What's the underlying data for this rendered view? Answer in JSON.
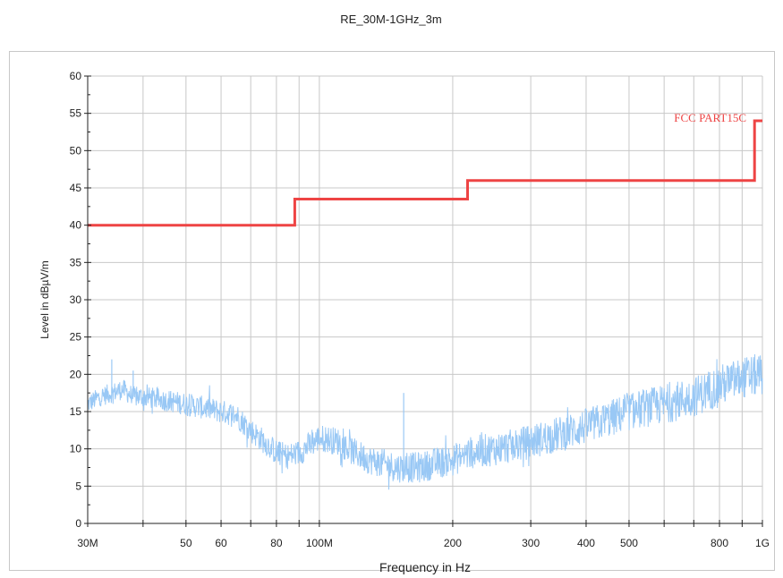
{
  "chart_data": {
    "type": "line",
    "title": "RE_30M-1GHz_3m",
    "xlabel": "Frequency in Hz",
    "ylabel": "Level in dBµV/m",
    "x_scale": "log",
    "xlim": [
      30000000,
      1000000000
    ],
    "ylim": [
      0,
      60
    ],
    "grid": true,
    "x_ticks": [
      {
        "value": 30000000,
        "label": "30M"
      },
      {
        "value": 50000000,
        "label": "50"
      },
      {
        "value": 60000000,
        "label": "60"
      },
      {
        "value": 80000000,
        "label": "80"
      },
      {
        "value": 100000000,
        "label": "100M"
      },
      {
        "value": 200000000,
        "label": "200"
      },
      {
        "value": 300000000,
        "label": "300"
      },
      {
        "value": 400000000,
        "label": "400"
      },
      {
        "value": 500000000,
        "label": "500"
      },
      {
        "value": 800000000,
        "label": "800"
      },
      {
        "value": 1000000000,
        "label": "1G"
      }
    ],
    "y_ticks": [
      0,
      5,
      10,
      15,
      20,
      25,
      30,
      35,
      40,
      45,
      50,
      55,
      60
    ],
    "y_tick_labels": [
      "0",
      "5",
      "10",
      "15",
      "20",
      "25",
      "30",
      "35",
      "40",
      "45",
      "50",
      "55",
      "60"
    ],
    "series": [
      {
        "name": "FCC PART15C",
        "color": "#ee4444",
        "x": [
          30000000,
          88000000,
          88000000,
          216000000,
          216000000,
          960000000,
          960000000,
          1000000000
        ],
        "y": [
          40,
          40,
          43.5,
          43.5,
          46,
          46,
          54,
          54
        ]
      },
      {
        "color": "#99c8f5",
        "x": [
          30000000,
          32000000,
          34000000,
          36000000,
          38000000,
          40000000,
          45000000,
          50000000,
          55000000,
          60000000,
          65000000,
          70000000,
          75000000,
          80000000,
          85000000,
          90000000,
          95000000,
          100000000,
          110000000,
          120000000,
          130000000,
          140000000,
          150000000,
          160000000,
          170000000,
          180000000,
          200000000,
          220000000,
          250000000,
          280000000,
          300000000,
          350000000,
          400000000,
          450000000,
          500000000,
          600000000,
          700000000,
          800000000,
          900000000,
          1000000000
        ],
        "y": [
          16,
          17,
          17.5,
          18,
          17,
          17,
          16.5,
          16,
          15.5,
          15,
          14.5,
          12.5,
          11,
          9.5,
          9,
          9.5,
          10.5,
          11.5,
          11,
          9.5,
          8.5,
          8,
          7.5,
          7.5,
          7.5,
          8,
          8.5,
          9.5,
          10,
          10.5,
          11,
          12,
          13,
          14,
          15,
          16,
          17,
          18.5,
          19.5,
          20
        ]
      }
    ],
    "spikes": [
      {
        "x": 34000000,
        "y": 22
      },
      {
        "x": 38000000,
        "y": 20.5
      },
      {
        "x": 155000000,
        "y": 17.5
      }
    ]
  }
}
